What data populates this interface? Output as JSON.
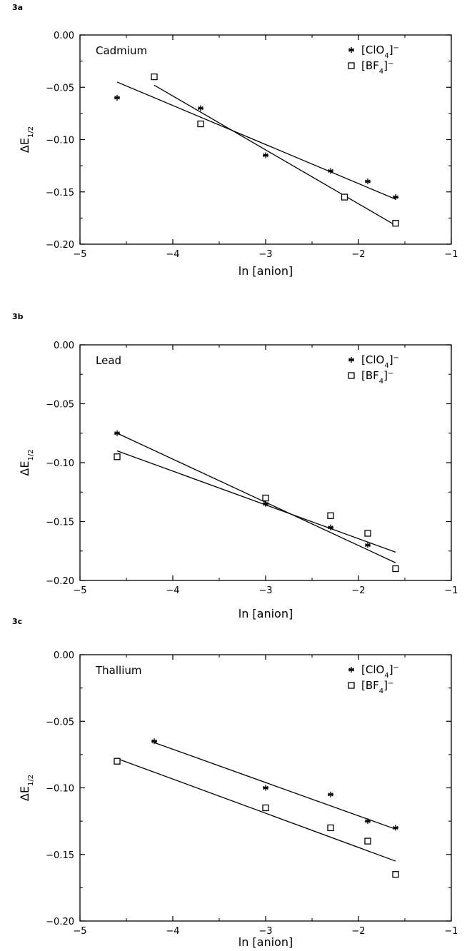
{
  "chart_data": [
    {
      "type": "scatter",
      "panel_label": "3a",
      "title": "Cadmium",
      "xlabel": "ln [anion]",
      "ylabel": "ΔE1/2",
      "xlim": [
        -5,
        -1
      ],
      "ylim": [
        -0.2,
        0.0
      ],
      "xticks": [
        "-5",
        "-4",
        "-3",
        "-2",
        "-1"
      ],
      "yticks": [
        "0.00",
        "-0.05",
        "-0.10",
        "-0.15",
        "-0.20"
      ],
      "legend_position": "top-right",
      "series": [
        {
          "name": "[ClO4]−",
          "marker": "asterisk",
          "points": [
            [
              -4.6,
              -0.06
            ],
            [
              -3.7,
              -0.07
            ],
            [
              -3.0,
              -0.115
            ],
            [
              -2.3,
              -0.13
            ],
            [
              -1.9,
              -0.14
            ],
            [
              -1.6,
              -0.155
            ]
          ],
          "fit": [
            [
              -4.6,
              -0.045
            ],
            [
              -1.6,
              -0.157
            ]
          ]
        },
        {
          "name": "[BF4]−",
          "marker": "square",
          "points": [
            [
              -4.2,
              -0.04
            ],
            [
              -3.7,
              -0.085
            ],
            [
              -2.15,
              -0.155
            ],
            [
              -1.6,
              -0.18
            ]
          ],
          "fit": [
            [
              -4.2,
              -0.048
            ],
            [
              -1.6,
              -0.182
            ]
          ]
        }
      ]
    },
    {
      "type": "scatter",
      "panel_label": "3b",
      "title": "Lead",
      "xlabel": "ln [anion]",
      "ylabel": "ΔE1/2",
      "xlim": [
        -5,
        -1
      ],
      "ylim": [
        -0.2,
        0.0
      ],
      "xticks": [
        "-5",
        "-4",
        "-3",
        "-2",
        "-1"
      ],
      "yticks": [
        "0.00",
        "-0.05",
        "-0.10",
        "-0.15",
        "-0.20"
      ],
      "legend_position": "top-right",
      "series": [
        {
          "name": "[ClO4]−",
          "marker": "asterisk",
          "points": [
            [
              -4.6,
              -0.075
            ],
            [
              -3.0,
              -0.135
            ],
            [
              -2.3,
              -0.155
            ],
            [
              -1.9,
              -0.17
            ],
            [
              -1.6,
              -0.19
            ]
          ],
          "fit": [
            [
              -4.6,
              -0.075
            ],
            [
              -1.6,
              -0.185
            ]
          ]
        },
        {
          "name": "[BF4]−",
          "marker": "square",
          "points": [
            [
              -4.6,
              -0.095
            ],
            [
              -3.0,
              -0.13
            ],
            [
              -2.3,
              -0.145
            ],
            [
              -1.9,
              -0.16
            ],
            [
              -1.6,
              -0.19
            ]
          ],
          "fit": [
            [
              -4.6,
              -0.09
            ],
            [
              -1.6,
              -0.176
            ]
          ]
        }
      ]
    },
    {
      "type": "scatter",
      "panel_label": "3c",
      "title": "Thallium",
      "xlabel": "ln [anion]",
      "ylabel": "ΔE1/2",
      "xlim": [
        -5,
        -1
      ],
      "ylim": [
        -0.2,
        0.0
      ],
      "xticks": [
        "-5",
        "-4",
        "-3",
        "-2",
        "-1"
      ],
      "yticks": [
        "0.00",
        "-0.05",
        "-0.10",
        "-0.15",
        "-0.20"
      ],
      "legend_position": "top-right",
      "series": [
        {
          "name": "[ClO4]−",
          "marker": "asterisk",
          "points": [
            [
              -4.2,
              -0.065
            ],
            [
              -3.0,
              -0.1
            ],
            [
              -2.3,
              -0.105
            ],
            [
              -1.9,
              -0.125
            ],
            [
              -1.6,
              -0.13
            ]
          ],
          "fit": [
            [
              -4.2,
              -0.066
            ],
            [
              -1.6,
              -0.131
            ]
          ]
        },
        {
          "name": "[BF4]−",
          "marker": "square",
          "points": [
            [
              -4.6,
              -0.08
            ],
            [
              -3.0,
              -0.115
            ],
            [
              -2.3,
              -0.13
            ],
            [
              -1.9,
              -0.14
            ],
            [
              -1.6,
              -0.165
            ]
          ],
          "fit": [
            [
              -4.6,
              -0.078
            ],
            [
              -1.6,
              -0.155
            ]
          ]
        }
      ]
    }
  ]
}
